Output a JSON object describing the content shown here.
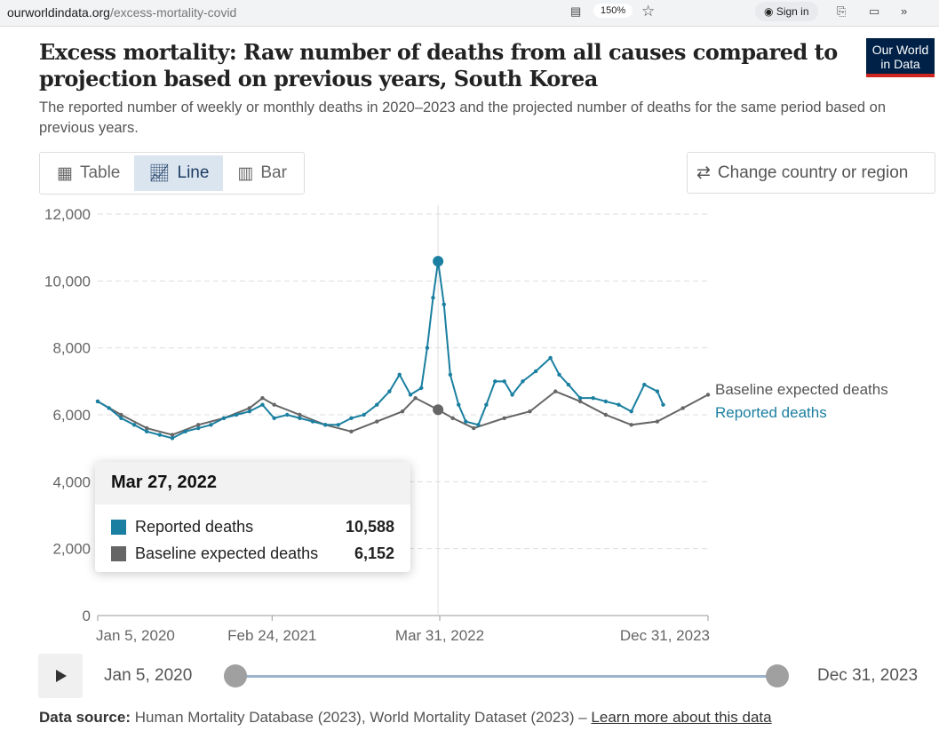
{
  "browser": {
    "url_host": "ourworldindata.org",
    "url_path": "/excess-mortality-covid",
    "zoom": "150%",
    "sign_in": "Sign in"
  },
  "header": {
    "title": "Excess mortality: Raw number of deaths from all causes compared to projection based on previous years, South Korea",
    "subtitle": "The reported number of weekly or monthly deaths in 2020–2023 and the projected number of deaths for the same period based on previous years.",
    "logo": "Our World in Data"
  },
  "tabs": [
    {
      "label": "Table"
    },
    {
      "label": "Line"
    },
    {
      "label": "Bar"
    }
  ],
  "change_country": "Change country or region",
  "tooltip": {
    "date": "Mar 27, 2022",
    "rows": [
      {
        "label": "Reported deaths",
        "value": "10,588"
      },
      {
        "label": "Baseline expected deaths",
        "value": "6,152"
      }
    ]
  },
  "timeline": {
    "start": "Jan 5, 2020",
    "end": "Dec 31, 2023"
  },
  "source": {
    "label": "Data source:",
    "text": "Human Mortality Database (2023), World Mortality Dataset (2023) –",
    "link": "Learn more about this data"
  },
  "colors": {
    "reported": "#1a7fa0",
    "baseline": "#666666"
  },
  "chart_data": {
    "type": "line",
    "title": "Excess mortality: Raw number of deaths from all causes compared to projection based on previous years, South Korea",
    "ylim": [
      0,
      12000
    ],
    "xlim": [
      "2020-01-05",
      "2023-12-31"
    ],
    "yticks": [
      {
        "v": 0,
        "label": "0"
      },
      {
        "v": 2000,
        "label": "2,000"
      },
      {
        "v": 4000,
        "label": "4,000"
      },
      {
        "v": 6000,
        "label": "6,000"
      },
      {
        "v": 8000,
        "label": "8,000"
      },
      {
        "v": 10000,
        "label": "10,000"
      },
      {
        "v": 12000,
        "label": "12,000"
      }
    ],
    "xticks": [
      {
        "d": "2020-01-05",
        "label": "Jan 5, 2020"
      },
      {
        "d": "2021-02-24",
        "label": "Feb 24, 2021"
      },
      {
        "d": "2022-03-31",
        "label": "Mar 31, 2022"
      },
      {
        "d": "2023-12-31",
        "label": "Dec 31, 2023"
      }
    ],
    "highlight": "2022-03-27",
    "series": [
      {
        "name": "Baseline expected deaths",
        "color": "#666666",
        "points": [
          [
            "2020-01-05",
            6400
          ],
          [
            "2020-03-01",
            6000
          ],
          [
            "2020-05-01",
            5600
          ],
          [
            "2020-07-01",
            5400
          ],
          [
            "2020-09-01",
            5700
          ],
          [
            "2020-11-01",
            5900
          ],
          [
            "2021-01-01",
            6200
          ],
          [
            "2021-02-01",
            6500
          ],
          [
            "2021-03-01",
            6300
          ],
          [
            "2021-05-01",
            6000
          ],
          [
            "2021-07-01",
            5700
          ],
          [
            "2021-09-01",
            5500
          ],
          [
            "2021-11-01",
            5800
          ],
          [
            "2022-01-01",
            6100
          ],
          [
            "2022-02-01",
            6500
          ],
          [
            "2022-03-27",
            6152
          ],
          [
            "2022-05-01",
            5900
          ],
          [
            "2022-06-20",
            5600
          ],
          [
            "2022-09-01",
            5900
          ],
          [
            "2022-11-01",
            6100
          ],
          [
            "2023-01-01",
            6700
          ],
          [
            "2023-03-01",
            6400
          ],
          [
            "2023-05-01",
            6000
          ],
          [
            "2023-07-01",
            5700
          ],
          [
            "2023-09-01",
            5800
          ],
          [
            "2023-11-01",
            6200
          ],
          [
            "2023-12-31",
            6600
          ]
        ]
      },
      {
        "name": "Reported deaths",
        "color": "#1a7fa0",
        "points": [
          [
            "2020-01-05",
            6400
          ],
          [
            "2020-02-01",
            6200
          ],
          [
            "2020-03-01",
            5900
          ],
          [
            "2020-04-01",
            5700
          ],
          [
            "2020-05-01",
            5500
          ],
          [
            "2020-06-01",
            5400
          ],
          [
            "2020-07-01",
            5300
          ],
          [
            "2020-08-01",
            5500
          ],
          [
            "2020-09-01",
            5600
          ],
          [
            "2020-10-01",
            5700
          ],
          [
            "2020-11-01",
            5900
          ],
          [
            "2020-12-01",
            6000
          ],
          [
            "2021-01-01",
            6100
          ],
          [
            "2021-02-01",
            6300
          ],
          [
            "2021-03-01",
            5900
          ],
          [
            "2021-04-01",
            6000
          ],
          [
            "2021-05-01",
            5900
          ],
          [
            "2021-06-01",
            5800
          ],
          [
            "2021-07-01",
            5700
          ],
          [
            "2021-08-01",
            5700
          ],
          [
            "2021-09-01",
            5900
          ],
          [
            "2021-10-01",
            6000
          ],
          [
            "2021-11-01",
            6300
          ],
          [
            "2021-12-01",
            6700
          ],
          [
            "2021-12-25",
            7200
          ],
          [
            "2022-01-20",
            6600
          ],
          [
            "2022-02-15",
            6800
          ],
          [
            "2022-03-01",
            8000
          ],
          [
            "2022-03-15",
            9500
          ],
          [
            "2022-03-27",
            10588
          ],
          [
            "2022-04-10",
            9300
          ],
          [
            "2022-04-25",
            7200
          ],
          [
            "2022-05-15",
            6300
          ],
          [
            "2022-06-01",
            5800
          ],
          [
            "2022-07-01",
            5700
          ],
          [
            "2022-07-20",
            6300
          ],
          [
            "2022-08-10",
            7000
          ],
          [
            "2022-09-01",
            7000
          ],
          [
            "2022-09-20",
            6600
          ],
          [
            "2022-10-15",
            7000
          ],
          [
            "2022-11-15",
            7300
          ],
          [
            "2022-12-20",
            7700
          ],
          [
            "2023-01-10",
            7200
          ],
          [
            "2023-02-01",
            6900
          ],
          [
            "2023-03-01",
            6500
          ],
          [
            "2023-04-01",
            6500
          ],
          [
            "2023-05-01",
            6400
          ],
          [
            "2023-06-01",
            6300
          ],
          [
            "2023-07-01",
            6100
          ],
          [
            "2023-08-01",
            6900
          ],
          [
            "2023-09-01",
            6700
          ],
          [
            "2023-09-15",
            6300
          ]
        ]
      }
    ]
  }
}
